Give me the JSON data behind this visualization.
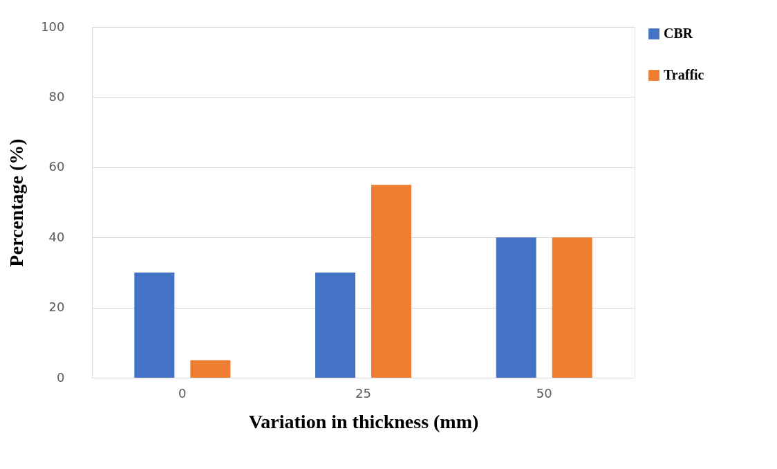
{
  "chart_data": {
    "type": "bar",
    "xlabel": "Variation in thickness (mm)",
    "ylabel": "Percentage (%)",
    "categories": [
      "0",
      "25",
      "50"
    ],
    "series": [
      {
        "name": "CBR",
        "color": "#4472c4",
        "values": [
          30,
          30,
          40
        ]
      },
      {
        "name": "Traffic",
        "color": "#ed7d31",
        "values": [
          5,
          55,
          40
        ]
      }
    ],
    "ylim": [
      0,
      100
    ],
    "yticks": [
      0,
      20,
      40,
      60,
      80,
      100
    ],
    "grid": "y",
    "legend": "right"
  }
}
